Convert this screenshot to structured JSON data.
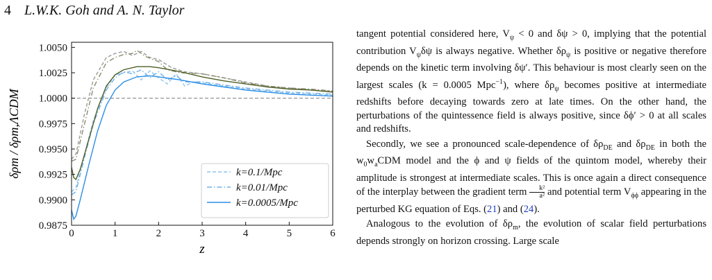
{
  "header": {
    "page_number": "4",
    "authors": "L.W.K. Goh and A. N. Taylor"
  },
  "chart_data": {
    "type": "line",
    "xlabel": "z",
    "ylabel": "δρm / δρm,ΛCDM",
    "xlim": [
      0,
      6
    ],
    "ylim": [
      0.9875,
      1.0055
    ],
    "xticks": [
      "0",
      "1",
      "2",
      "3",
      "4",
      "5",
      "6"
    ],
    "yticks": [
      "0.9875",
      "0.9900",
      "0.9925",
      "0.9950",
      "0.9975",
      "1.0000",
      "1.0025",
      "1.0050"
    ],
    "legend_position": "lower-right",
    "reference_line": 1.0,
    "colors": {
      "light_blue": "#8fc4f0",
      "mid_blue": "#6fb0e8",
      "blue": "#2b8ee6",
      "olive": "#4d5e22",
      "olive_dash": "#8c8c6e",
      "grey_dash": "#9a9a9a"
    },
    "series": [
      {
        "name": "k=0.1/Mpc",
        "style": "dashed",
        "color": "#8fc4f0",
        "x": [
          0,
          0.1,
          0.3,
          0.5,
          0.8,
          1.0,
          1.2,
          1.4,
          1.6,
          1.8,
          2.0,
          2.2,
          2.4,
          2.6,
          2.8,
          3.0,
          3.5,
          4.0,
          4.5,
          5.0,
          5.5,
          6.0
        ],
        "y": [
          0.9908,
          0.9912,
          0.9945,
          0.9978,
          1.001,
          1.0023,
          1.0025,
          1.0027,
          1.0018,
          1.0027,
          1.002,
          1.0014,
          1.0024,
          1.0012,
          1.0016,
          1.0015,
          1.0012,
          1.0009,
          1.0007,
          1.0005,
          1.0004,
          1.0003
        ]
      },
      {
        "name": "k=0.01/Mpc",
        "style": "dashdot",
        "color": "#6fb0e8",
        "x": [
          0,
          0.1,
          0.3,
          0.5,
          0.8,
          1.0,
          1.2,
          1.4,
          1.6,
          1.8,
          2.0,
          2.2,
          2.4,
          2.6,
          3.0,
          3.5,
          4.0,
          4.5,
          5.0,
          5.5,
          6.0
        ],
        "y": [
          0.9905,
          0.9908,
          0.9942,
          0.9975,
          1.0008,
          1.002,
          1.0026,
          1.0024,
          1.0028,
          1.002,
          1.0026,
          1.0018,
          1.0022,
          1.0016,
          1.0016,
          1.0013,
          1.001,
          1.0008,
          1.0006,
          1.0005,
          1.0004
        ]
      },
      {
        "name": "k=0.0005/Mpc",
        "style": "solid",
        "color": "#2b8ee6",
        "x": [
          0,
          0.05,
          0.1,
          0.2,
          0.4,
          0.6,
          0.8,
          1.0,
          1.2,
          1.5,
          1.8,
          2.0,
          2.5,
          3.0,
          3.5,
          4.0,
          4.5,
          5.0,
          5.5,
          6.0
        ],
        "y": [
          0.989,
          0.9881,
          0.9884,
          0.99,
          0.9935,
          0.9968,
          0.9993,
          1.0008,
          1.0016,
          1.0021,
          1.0022,
          1.0021,
          1.0018,
          1.0014,
          1.0011,
          1.0008,
          1.0006,
          1.0004,
          1.0003,
          1.0002
        ]
      },
      {
        "style": "solid",
        "color": "#4d5e22",
        "x": [
          0,
          0.05,
          0.1,
          0.2,
          0.4,
          0.6,
          0.8,
          1.0,
          1.2,
          1.5,
          1.8,
          2.0,
          2.5,
          3.0,
          3.5,
          4.0,
          4.5,
          5.0,
          5.5,
          6.0
        ],
        "y": [
          0.9932,
          0.9922,
          0.992,
          0.993,
          0.996,
          0.999,
          1.0012,
          1.0023,
          1.0028,
          1.0031,
          1.0031,
          1.003,
          1.0026,
          1.0021,
          1.0017,
          1.0014,
          1.0011,
          1.0009,
          1.0008,
          1.0006
        ]
      },
      {
        "style": "dashdot",
        "color": "#8c8c6e",
        "x": [
          0,
          0.1,
          0.3,
          0.5,
          0.8,
          1.0,
          1.2,
          1.4,
          1.5,
          1.7,
          2.0,
          2.2,
          2.5,
          3.0,
          3.5,
          4.0,
          4.5,
          5.0,
          5.5,
          6.0
        ],
        "y": [
          0.9938,
          0.994,
          0.9975,
          1.001,
          1.0035,
          1.004,
          1.0043,
          1.0044,
          1.0047,
          1.0041,
          1.0036,
          1.0028,
          1.0025,
          1.0024,
          1.002,
          1.0015,
          1.0012,
          1.001,
          1.0009,
          1.0007
        ]
      },
      {
        "style": "dashed",
        "color": "#9a9a9a",
        "x": [
          0,
          0.1,
          0.3,
          0.5,
          0.8,
          1.0,
          1.2,
          1.4,
          1.6,
          1.8,
          2.0,
          2.3,
          2.6,
          3.0,
          3.5,
          4.0,
          4.5,
          5.0,
          5.5,
          6.0
        ],
        "y": [
          0.994,
          0.9945,
          0.9985,
          1.0018,
          1.004,
          1.0044,
          1.0046,
          1.0042,
          1.0046,
          1.004,
          1.0038,
          1.003,
          1.0026,
          1.0024,
          1.002,
          1.0016,
          1.0012,
          1.001,
          1.0008,
          1.0007
        ]
      }
    ]
  },
  "text": {
    "p1_a": "tangent potential considered here, V",
    "p1_b": " < 0 and δψ > 0, implying that the potential contribution V",
    "p1_c": "δψ is always negative. Whether δρ",
    "p1_d": " is positive or negative therefore depends on the kinetic term involving δψ′. This behaviour is most clearly seen on the largest scales (k = 0.0005 Mpc",
    "p1_e": "), where δρ",
    "p1_f": " becomes positive at intermediate redshifts before decaying towards zero at late times. On the other hand, the perturbations of the quintessence field is always positive, since δϕ′ > 0 at all scales and redshifts.",
    "p2_a": "Secondly, we see a pronounced scale-dependence of δρ",
    "p2_b": " and δρ",
    "p2_c": " in both the w",
    "p2_d": "w",
    "p2_e": "CDM model and the ϕ and ψ fields of the quintom model, whereby their amplitude is strongest at intermediate scales. This is once again a direct consequence of the interplay between the gradient term ",
    "p2_f": " and potential term V",
    "p2_g": " appearing in the perturbed KG equation of Eqs. (",
    "p2_ref1": "21",
    "p2_h": ") and (",
    "p2_ref2": "24",
    "p2_i": ").",
    "p3_a": "Analogous to the evolution of δρ",
    "p3_b": ", the evolution of scalar field perturbations depends strongly on horizon crossing. Large scale",
    "sub_psi": "ψ",
    "sub_psi2": "ψ",
    "sub_psi3": "ψ",
    "sub_psi4": "ψ",
    "sup_m1": "−1",
    "sub_de": "DE",
    "sub_de2": "DE",
    "sub_0": "0",
    "sub_a": "a",
    "frac_num": "k²",
    "frac_den": "a²",
    "sub_phiphi": "ϕϕ",
    "sub_m": "m"
  }
}
